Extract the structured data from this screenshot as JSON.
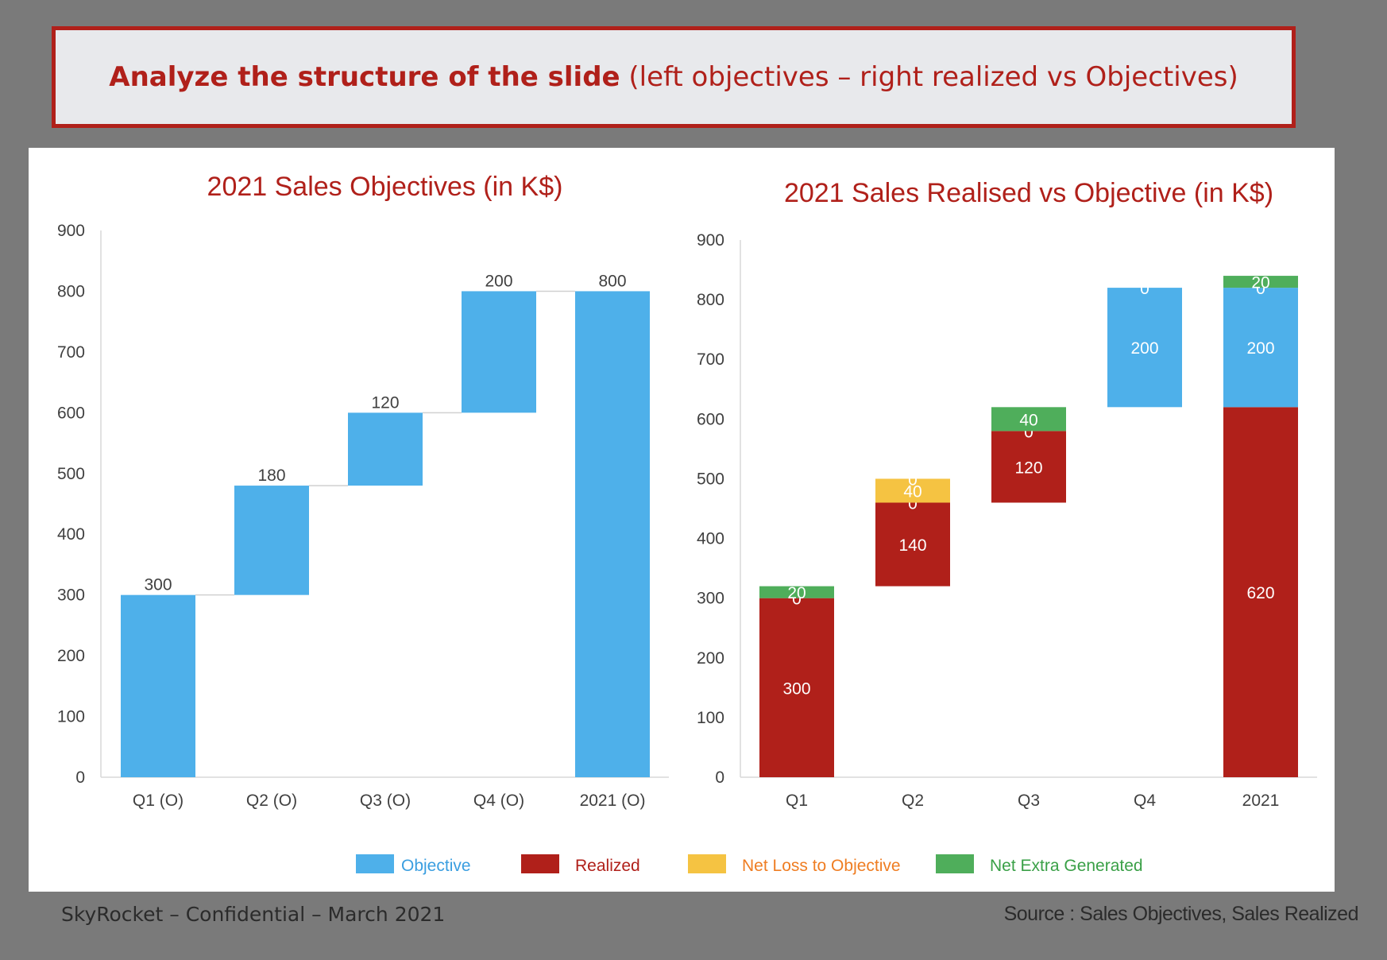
{
  "banner": {
    "bold_text": "Analyze the structure of the slide",
    "normal_text": "(left objectives – right realized vs Objectives)"
  },
  "footer": {
    "left": "SkyRocket – Confidential – March 2021",
    "right": "Source : Sales Objectives, Sales Realized"
  },
  "legend": [
    {
      "label": "Objective",
      "color": "#4eb0ea"
    },
    {
      "label": "Realized",
      "color": "#b0201a"
    },
    {
      "label": "Net Loss  to Objective",
      "color": "#f5c342"
    },
    {
      "label": "Net Extra Generated",
      "color": "#4fae5b"
    }
  ],
  "chart_data": [
    {
      "type": "bar",
      "subtype": "waterfall",
      "title": "2021 Sales Objectives (in K$)",
      "categories": [
        "Q1 (O)",
        "Q2 (O)",
        "Q3 (O)",
        "Q4 (O)",
        "2021 (O)"
      ],
      "bases": [
        0,
        300,
        480,
        600,
        0
      ],
      "values": [
        300,
        180,
        120,
        200,
        800
      ],
      "labels": [
        "300",
        "180",
        "120",
        "200",
        "800"
      ],
      "color": "#4eb0ea",
      "ylim": [
        0,
        900
      ],
      "yticks": [
        0,
        100,
        200,
        300,
        400,
        500,
        600,
        700,
        800,
        900
      ],
      "grid": false
    },
    {
      "type": "bar",
      "subtype": "stacked-waterfall",
      "title": "2021 Sales Realised vs Objective (in K$)",
      "categories": [
        "Q1",
        "Q2",
        "Q3",
        "Q4",
        "2021"
      ],
      "ylim": [
        0,
        900
      ],
      "yticks": [
        0,
        100,
        200,
        300,
        400,
        500,
        600,
        700,
        800,
        900
      ],
      "grid": false,
      "bars": [
        {
          "category": "Q1",
          "base": 0,
          "series": [
            {
              "name": "Realized",
              "value": 300,
              "label": "300"
            },
            {
              "name": "Net Loss  to Objective",
              "value": 0,
              "label": "0"
            },
            {
              "name": "Net Extra Generated",
              "value": 20,
              "label": "20"
            }
          ]
        },
        {
          "category": "Q2",
          "base": 320,
          "series": [
            {
              "name": "Realized",
              "value": 140,
              "label": "140"
            },
            {
              "name": "Net Extra Generated",
              "value": 0,
              "label": "0"
            },
            {
              "name": "Net Loss  to Objective",
              "value": 40,
              "label": "40"
            },
            {
              "name": "Objective",
              "value": 0,
              "label": "0"
            }
          ]
        },
        {
          "category": "Q3",
          "base": 460,
          "series": [
            {
              "name": "Realized",
              "value": 120,
              "label": "120"
            },
            {
              "name": "Net Loss  to Objective",
              "value": 0,
              "label": "0"
            },
            {
              "name": "Net Extra Generated",
              "value": 40,
              "label": "40"
            }
          ]
        },
        {
          "category": "Q4",
          "base": 620,
          "series": [
            {
              "name": "Realized",
              "value": 0,
              "label": "0"
            },
            {
              "name": "Objective",
              "value": 200,
              "label": "200"
            },
            {
              "name": "Net Extra Generated",
              "value": 0,
              "label": "0"
            }
          ]
        },
        {
          "category": "2021",
          "base": 0,
          "series": [
            {
              "name": "Realized",
              "value": 620,
              "label": "620"
            },
            {
              "name": "Objective",
              "value": 200,
              "label": "200"
            },
            {
              "name": "Net Loss  to Objective",
              "value": 0,
              "label": "0"
            },
            {
              "name": "Net Extra Generated",
              "value": 20,
              "label": "20"
            }
          ]
        }
      ]
    }
  ]
}
